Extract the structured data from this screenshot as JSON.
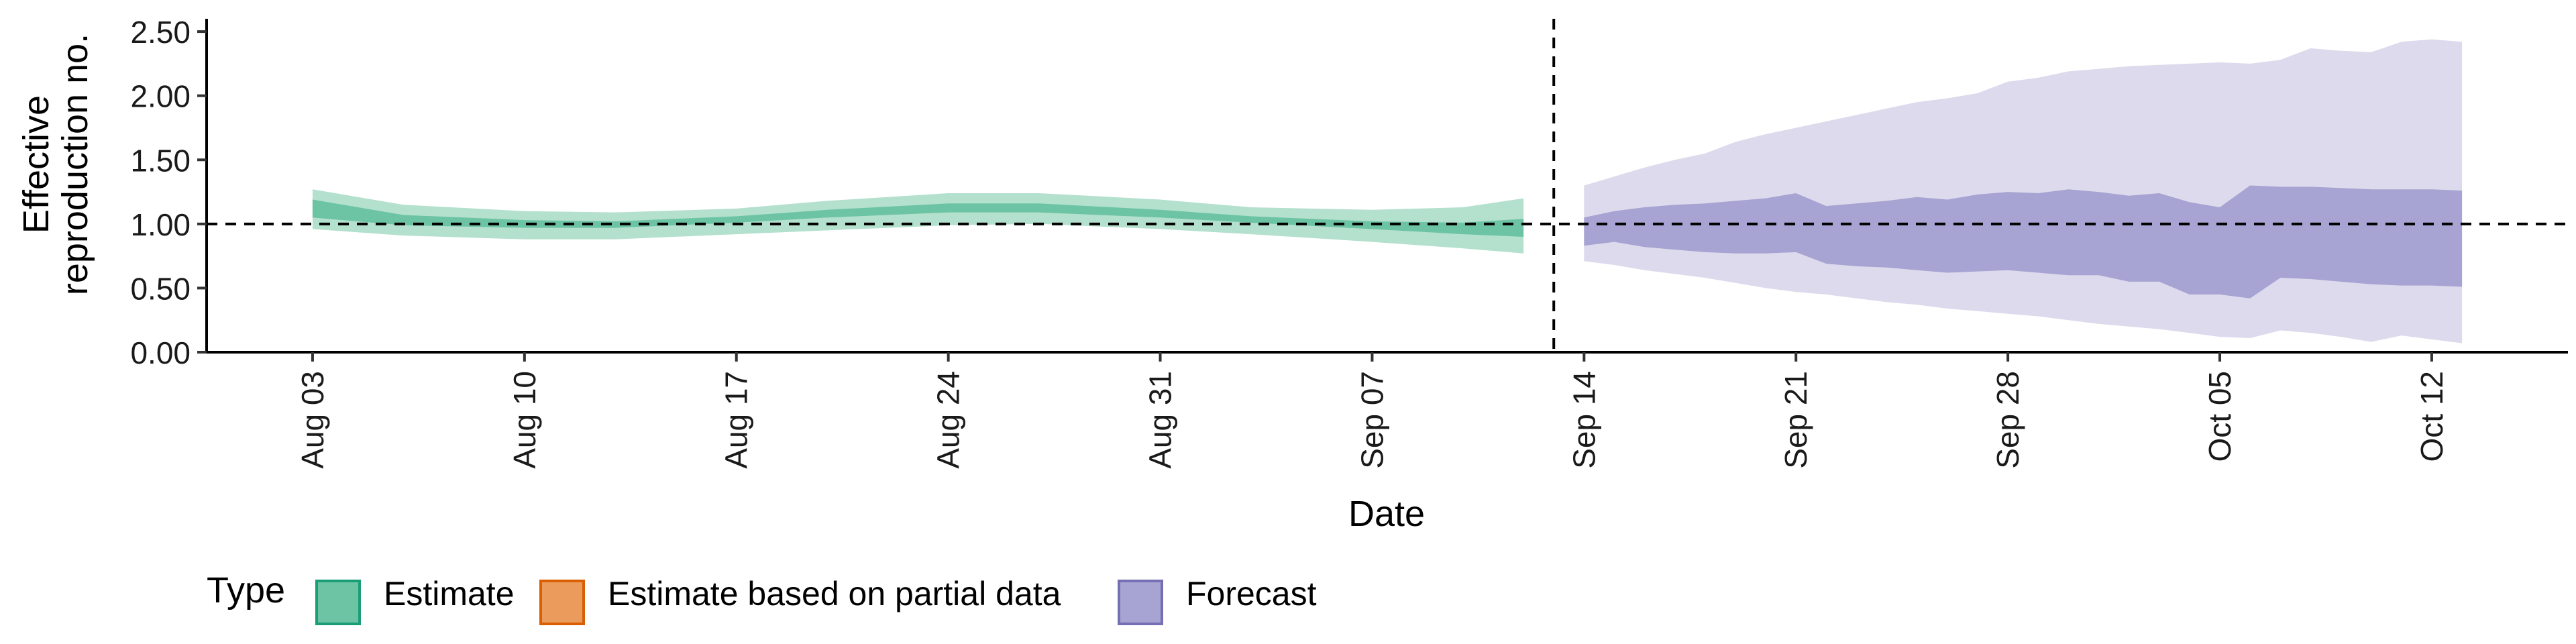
{
  "chart_data": {
    "type": "area",
    "xlabel": "Date",
    "ylabel_lines": [
      "Effective",
      "reproduction no."
    ],
    "ylim": [
      0,
      2.6
    ],
    "y_ticks": [
      0.0,
      0.5,
      1.0,
      1.5,
      2.0,
      2.5
    ],
    "y_tick_labels": [
      "0.00",
      "0.50",
      "1.00",
      "1.50",
      "2.00",
      "2.50"
    ],
    "x_ticks": [
      {
        "day": 0,
        "label": "Aug 03"
      },
      {
        "day": 7,
        "label": "Aug 10"
      },
      {
        "day": 14,
        "label": "Aug 17"
      },
      {
        "day": 21,
        "label": "Aug 24"
      },
      {
        "day": 28,
        "label": "Aug 31"
      },
      {
        "day": 35,
        "label": "Sep 07"
      },
      {
        "day": 42,
        "label": "Sep 14"
      },
      {
        "day": 49,
        "label": "Sep 21"
      },
      {
        "day": 56,
        "label": "Sep 28"
      },
      {
        "day": 63,
        "label": "Oct 05"
      },
      {
        "day": 70,
        "label": "Oct 12"
      }
    ],
    "xlim": [
      -3.5,
      74.5
    ],
    "reference_line_y": 1.0,
    "vertical_line_day": 41,
    "legend": {
      "title": "Type",
      "position": "bottom-left",
      "items": [
        {
          "label": "Estimate",
          "fill": "#6cc4a4",
          "border": "#1b9e77"
        },
        {
          "label": "Estimate based on partial data",
          "fill": "#eb9b5c",
          "border": "#d95f02"
        },
        {
          "label": "Forecast",
          "fill": "#a7a3d2",
          "border": "#7570b3"
        }
      ]
    },
    "series": [
      {
        "name": "Estimate",
        "color_outer": "#b4e0ce",
        "color_inner": "#6cc4a4",
        "x": [
          0,
          3,
          7,
          10,
          14,
          17,
          21,
          24,
          28,
          31,
          35,
          38,
          40
        ],
        "outer_lo": [
          0.96,
          0.91,
          0.88,
          0.88,
          0.92,
          0.95,
          0.99,
          1.0,
          0.96,
          0.92,
          0.86,
          0.81,
          0.77
        ],
        "outer_hi": [
          1.27,
          1.15,
          1.1,
          1.09,
          1.12,
          1.18,
          1.24,
          1.24,
          1.19,
          1.13,
          1.11,
          1.13,
          1.2
        ],
        "inner_lo": [
          1.05,
          0.99,
          0.97,
          0.97,
          1.01,
          1.05,
          1.09,
          1.09,
          1.05,
          1.01,
          0.96,
          0.92,
          0.9
        ],
        "inner_hi": [
          1.19,
          1.07,
          1.03,
          1.02,
          1.06,
          1.11,
          1.16,
          1.16,
          1.11,
          1.06,
          1.02,
          1.01,
          1.04
        ]
      },
      {
        "name": "Forecast",
        "color_outer": "#dcdaec",
        "color_inner": "#a7a3d2",
        "x": [
          42,
          43,
          44,
          45,
          46,
          47,
          48,
          49,
          50,
          51,
          52,
          53,
          54,
          55,
          56,
          57,
          58,
          59,
          60,
          61,
          62,
          63,
          64,
          65,
          66,
          67,
          68,
          69,
          70,
          71
        ],
        "outer_lo": [
          0.71,
          0.68,
          0.64,
          0.61,
          0.58,
          0.54,
          0.5,
          0.47,
          0.45,
          0.42,
          0.39,
          0.37,
          0.34,
          0.32,
          0.3,
          0.28,
          0.25,
          0.22,
          0.2,
          0.18,
          0.15,
          0.12,
          0.11,
          0.17,
          0.15,
          0.12,
          0.08,
          0.13,
          0.1,
          0.07
        ],
        "outer_hi": [
          1.3,
          1.37,
          1.44,
          1.5,
          1.55,
          1.64,
          1.7,
          1.75,
          1.8,
          1.85,
          1.9,
          1.95,
          1.98,
          2.02,
          2.11,
          2.14,
          2.19,
          2.21,
          2.23,
          2.24,
          2.25,
          2.26,
          2.25,
          2.28,
          2.37,
          2.35,
          2.34,
          2.42,
          2.44,
          2.42
        ],
        "inner_lo": [
          0.83,
          0.86,
          0.82,
          0.8,
          0.78,
          0.77,
          0.77,
          0.78,
          0.69,
          0.67,
          0.66,
          0.64,
          0.62,
          0.63,
          0.64,
          0.62,
          0.6,
          0.6,
          0.55,
          0.55,
          0.45,
          0.45,
          0.42,
          0.58,
          0.57,
          0.55,
          0.53,
          0.52,
          0.52,
          0.51
        ],
        "inner_hi": [
          1.05,
          1.1,
          1.13,
          1.15,
          1.16,
          1.18,
          1.2,
          1.24,
          1.14,
          1.16,
          1.18,
          1.21,
          1.19,
          1.23,
          1.25,
          1.24,
          1.27,
          1.25,
          1.22,
          1.24,
          1.17,
          1.13,
          1.3,
          1.29,
          1.29,
          1.28,
          1.27,
          1.27,
          1.27,
          1.26
        ]
      }
    ]
  }
}
